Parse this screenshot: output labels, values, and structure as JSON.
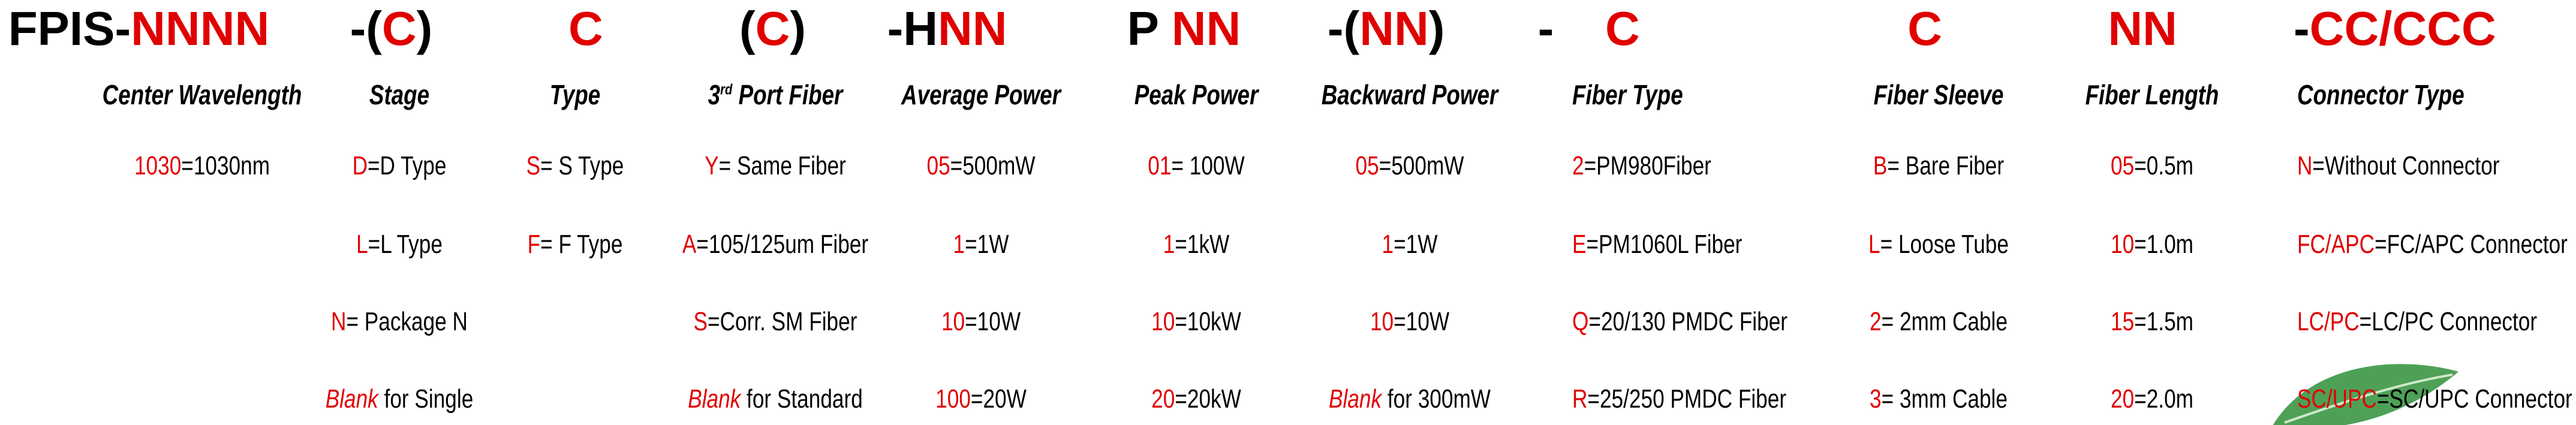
{
  "code_parts": [
    [
      {
        "text": "FPIS-",
        "red": false
      },
      {
        "text": "NNNN",
        "red": true
      }
    ],
    [
      {
        "text": "-(",
        "red": false
      },
      {
        "text": "C",
        "red": true
      },
      {
        "text": ")",
        "red": false
      }
    ],
    [
      {
        "text": "C",
        "red": true
      }
    ],
    [
      {
        "text": "(",
        "red": false
      },
      {
        "text": "C",
        "red": true
      },
      {
        "text": ")",
        "red": false
      }
    ],
    [
      {
        "text": "-H",
        "red": false
      },
      {
        "text": "NN",
        "red": true
      }
    ],
    [
      {
        "text": "P ",
        "red": false
      },
      {
        "text": "NN",
        "red": true
      }
    ],
    [
      {
        "text": "-(",
        "red": false
      },
      {
        "text": "NN",
        "red": true
      },
      {
        "text": ")",
        "red": false
      }
    ],
    [
      {
        "text": "-",
        "red": false
      }
    ],
    [
      {
        "text": "C",
        "red": true
      }
    ],
    [
      {
        "text": "C",
        "red": true
      }
    ],
    [
      {
        "text": "NN",
        "red": true
      }
    ],
    [
      {
        "text": "-",
        "red": false
      },
      {
        "text": "CC/CCC",
        "red": true
      }
    ]
  ],
  "columns": [
    {
      "subtitle": "Center Wavelength",
      "options": [
        {
          "code": "1030",
          "text": "=1030nm"
        }
      ]
    },
    {
      "subtitle": "Stage",
      "options": [
        {
          "code": "D",
          "text": "=D Type"
        },
        {
          "code": "L",
          "text": "=L Type"
        },
        {
          "code": "N",
          "text": "= Package N"
        },
        {
          "code": "Blank",
          "text": " for Single",
          "italic": true
        }
      ]
    },
    {
      "subtitle": "Type",
      "options": [
        {
          "code": "S",
          "text": "= S Type"
        },
        {
          "code": "F",
          "text": "= F Type"
        }
      ]
    },
    {
      "subtitle": {
        "number": "3",
        "sup": "rd",
        "text": " Port Fiber"
      },
      "options": [
        {
          "code": "Y",
          "text": "= Same Fiber"
        },
        {
          "code": "A",
          "text": "=105/125um Fiber"
        },
        {
          "code": "S",
          "text": "=Corr. SM Fiber"
        },
        {
          "code": "Blank",
          "text": " for Standard",
          "italic": true
        }
      ]
    },
    {
      "subtitle": "Average Power",
      "options": [
        {
          "code": "05",
          "text": "=500mW"
        },
        {
          "code": "1",
          "text": "=1W"
        },
        {
          "code": "10",
          "text": "=10W"
        },
        {
          "code": "100",
          "text": "=20W"
        }
      ]
    },
    {
      "subtitle": "Peak Power",
      "options": [
        {
          "code": "01",
          "text": "= 100W"
        },
        {
          "code": "1",
          "text": "=1kW"
        },
        {
          "code": "10",
          "text": "=10kW"
        },
        {
          "code": "20",
          "text": "=20kW"
        }
      ]
    },
    {
      "subtitle": "Backward Power",
      "options": [
        {
          "code": "05",
          "text": "=500mW"
        },
        {
          "code": "1",
          "text": "=1W"
        },
        {
          "code": "10",
          "text": "=10W"
        },
        {
          "code": "Blank",
          "text": " for 300mW",
          "italic": true
        }
      ]
    },
    {
      "subtitle": "Fiber Type",
      "options": [
        {
          "code": "2",
          "text": "=PM980Fiber"
        },
        {
          "code": "E",
          "text": "=PM1060L Fiber"
        },
        {
          "code": "Q",
          "text": "=20/130 PMDC Fiber"
        },
        {
          "code": "R",
          "text": "=25/250 PMDC Fiber"
        }
      ]
    },
    {
      "subtitle": "Fiber Sleeve",
      "options": [
        {
          "code": "B",
          "text": "= Bare Fiber"
        },
        {
          "code": "L",
          "text": "= Loose Tube"
        },
        {
          "code": "2",
          "text": "= 2mm Cable"
        },
        {
          "code": "3",
          "text": "= 3mm Cable"
        }
      ]
    },
    {
      "subtitle": "Fiber Length",
      "options": [
        {
          "code": "05",
          "text": "=0.5m"
        },
        {
          "code": "10",
          "text": "=1.0m"
        },
        {
          "code": "15",
          "text": "=1.5m"
        },
        {
          "code": "20",
          "text": "=2.0m"
        }
      ]
    },
    {
      "subtitle": "Connector Type",
      "options": [
        {
          "code": "N",
          "text": "=Without Connector"
        },
        {
          "code": "FC/APC",
          "text": "=FC/APC Connector"
        },
        {
          "code": "LC/PC",
          "text": "=LC/PC Connector"
        },
        {
          "code": "SC/UPC",
          "text": "=SC/UPC Connector"
        }
      ]
    }
  ]
}
